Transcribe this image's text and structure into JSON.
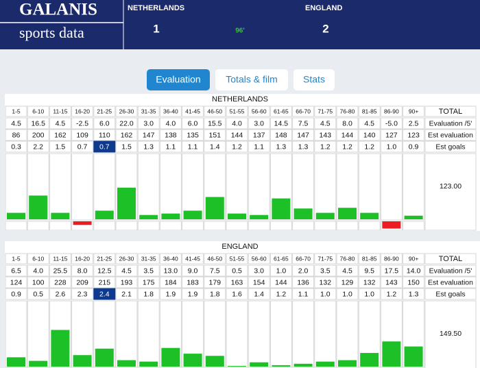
{
  "header": {
    "logo_title": "GALANIS",
    "logo_subtitle": "sports data",
    "home_team": "NETHERLANDS",
    "away_team": "ENGLAND",
    "home_score": 1,
    "away_score": 2,
    "minute": "96'"
  },
  "tabs": [
    {
      "label": "Evaluation",
      "active": true
    },
    {
      "label": "Totals & film",
      "active": false
    },
    {
      "label": "Stats",
      "active": false
    }
  ],
  "tables": [
    {
      "title": "NETHERLANDS",
      "columns": [
        "1-5",
        "6-10",
        "11-15",
        "16-20",
        "21-25",
        "26-30",
        "31-35",
        "36-40",
        "41-45",
        "46-50",
        "51-55",
        "56-60",
        "61-65",
        "66-70",
        "71-75",
        "76-80",
        "81-85",
        "86-90",
        "90+",
        "TOTAL"
      ],
      "rows": [
        {
          "label": "Evaluation /5'",
          "values": [
            4.5,
            16.5,
            4.5,
            -2.5,
            6,
            22,
            3,
            4,
            6,
            15.5,
            4,
            3,
            14.5,
            7.5,
            4.5,
            8,
            4.5,
            -5,
            2.5
          ],
          "value_labels": [
            "4.5",
            "16.5",
            "4.5",
            "-2.5",
            "6.0",
            "22.0",
            "3.0",
            "4.0",
            "6.0",
            "15.5",
            "4.0",
            "3.0",
            "14.5",
            "7.5",
            "4.5",
            "8.0",
            "4.5",
            "-5.0",
            "2.5"
          ]
        },
        {
          "label": "Est evaluation",
          "values": [
            86,
            200,
            162,
            109,
            110,
            162,
            147,
            138,
            135,
            151,
            144,
            137,
            148,
            147,
            143,
            144,
            140,
            127,
            123
          ]
        },
        {
          "label": "Est goals",
          "values": [
            0.3,
            2.2,
            1.5,
            0.7,
            0.7,
            1.5,
            1.3,
            1.1,
            1.1,
            1.4,
            1.2,
            1.1,
            1.3,
            1.3,
            1.2,
            1.2,
            1.2,
            1,
            0.9
          ],
          "value_labels": [
            "0.3",
            "2.2",
            "1.5",
            "0.7",
            "0.7",
            "1.5",
            "1.3",
            "1.1",
            "1.1",
            "1.4",
            "1.2",
            "1.1",
            "1.3",
            "1.3",
            "1.2",
            "1.2",
            "1.2",
            "1.0",
            "0.9"
          ],
          "highlight": 4
        }
      ],
      "chart_label": "123.00"
    },
    {
      "title": "ENGLAND",
      "columns": [
        "1-5",
        "6-10",
        "11-15",
        "16-20",
        "21-25",
        "26-30",
        "31-35",
        "36-40",
        "41-45",
        "46-50",
        "51-55",
        "56-60",
        "61-65",
        "66-70",
        "71-75",
        "76-80",
        "81-85",
        "86-90",
        "90+",
        "TOTAL"
      ],
      "rows": [
        {
          "label": "Evaluation /5'",
          "values": [
            6.5,
            4,
            25.5,
            8,
            12.5,
            4.5,
            3.5,
            13,
            9,
            7.5,
            0.5,
            3,
            1,
            2,
            3.5,
            4.5,
            9.5,
            17.5,
            14
          ],
          "value_labels": [
            "6.5",
            "4.0",
            "25.5",
            "8.0",
            "12.5",
            "4.5",
            "3.5",
            "13.0",
            "9.0",
            "7.5",
            "0.5",
            "3.0",
            "1.0",
            "2.0",
            "3.5",
            "4.5",
            "9.5",
            "17.5",
            "14.0"
          ]
        },
        {
          "label": "Est evaluation",
          "values": [
            124,
            100,
            228,
            209,
            215,
            193,
            175,
            184,
            183,
            179,
            163,
            154,
            144,
            136,
            132,
            129,
            132,
            143,
            150
          ]
        },
        {
          "label": "Est goals",
          "values": [
            0.9,
            0.5,
            2.6,
            2.3,
            2.4,
            2.1,
            1.8,
            1.9,
            1.9,
            1.8,
            1.6,
            1.4,
            1.2,
            1.1,
            1,
            1,
            1,
            1.2,
            1.3
          ],
          "value_labels": [
            "0.9",
            "0.5",
            "2.6",
            "2.3",
            "2.4",
            "2.1",
            "1.8",
            "1.9",
            "1.9",
            "1.8",
            "1.6",
            "1.4",
            "1.2",
            "1.1",
            "1.0",
            "1.0",
            "1.0",
            "1.2",
            "1.3"
          ],
          "highlight": 4
        }
      ],
      "chart_label": "149.50"
    }
  ]
}
